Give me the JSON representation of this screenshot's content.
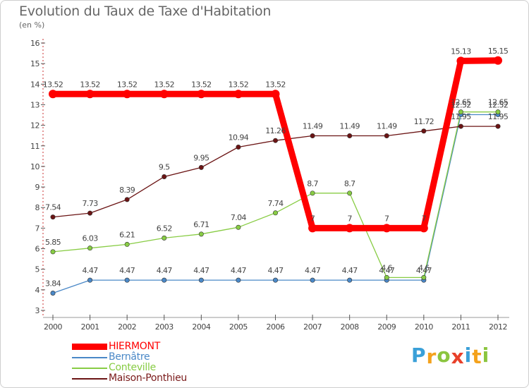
{
  "title": "Evolution du Taux de Taxe d'Habitation",
  "unit_label": "(en %)",
  "logo_text": [
    "P",
    "r",
    "o",
    "x",
    "i",
    "t",
    "i"
  ],
  "logo_colors": [
    "#3aa0d8",
    "#f4a21c",
    "#8bc53f",
    "#e8402a",
    "#3aa0d8",
    "#f4a21c",
    "#8bc53f"
  ],
  "chart_data": {
    "type": "line",
    "x": [
      "2000",
      "2001",
      "2002",
      "2003",
      "2004",
      "2005",
      "2006",
      "2007",
      "2008",
      "2009",
      "2010",
      "2011",
      "2012"
    ],
    "yticks": [
      "3",
      "4",
      "5",
      "6",
      "7",
      "8",
      "9",
      "10",
      "11",
      "12",
      "13",
      "14",
      "15",
      "16"
    ],
    "ylim": [
      3,
      16
    ],
    "grid": false,
    "legend_position": "bottom-left",
    "series": [
      {
        "name": "HIERMONT",
        "color": "#ff0000",
        "emphasis": true,
        "values": [
          13.52,
          13.52,
          13.52,
          13.52,
          13.52,
          13.52,
          13.52,
          7,
          7,
          7,
          7,
          15.13,
          15.15
        ],
        "labels": [
          "13.52",
          "13.52",
          "13.52",
          "13.52",
          "13.52",
          "13.52",
          "13.52",
          "7",
          "7",
          "7",
          "7",
          "15.13",
          "15.15"
        ]
      },
      {
        "name": "Bernâtre",
        "color": "#4a88c7",
        "values": [
          3.84,
          4.47,
          4.47,
          4.47,
          4.47,
          4.47,
          4.47,
          4.47,
          4.47,
          4.47,
          4.47,
          12.52,
          12.52
        ],
        "labels": [
          "3.84",
          "4.47",
          "4.47",
          "4.47",
          "4.47",
          "4.47",
          "4.47",
          "4.47",
          "4.47",
          "4.47",
          "4.47",
          "12.52",
          "12.52"
        ]
      },
      {
        "name": "Conteville",
        "color": "#88cc44",
        "values": [
          5.85,
          6.03,
          6.21,
          6.52,
          6.71,
          7.04,
          7.74,
          8.7,
          8.7,
          4.6,
          4.6,
          12.65,
          12.65
        ],
        "labels": [
          "5.85",
          "6.03",
          "6.21",
          "6.52",
          "6.71",
          "7.04",
          "7.74",
          "8.7",
          "8.7",
          "4.6",
          "4.6",
          "12.65",
          "12.65"
        ]
      },
      {
        "name": "Maison-Ponthieu",
        "color": "#6b1414",
        "values": [
          7.54,
          7.73,
          8.39,
          9.5,
          9.95,
          10.94,
          11.26,
          11.49,
          11.49,
          11.49,
          11.72,
          11.95,
          11.95
        ],
        "labels": [
          "7.54",
          "7.73",
          "8.39",
          "9.5",
          "9.95",
          "10.94",
          "11.26",
          "11.49",
          "11.49",
          "11.49",
          "11.72",
          "11.95",
          "11.95"
        ]
      }
    ]
  }
}
